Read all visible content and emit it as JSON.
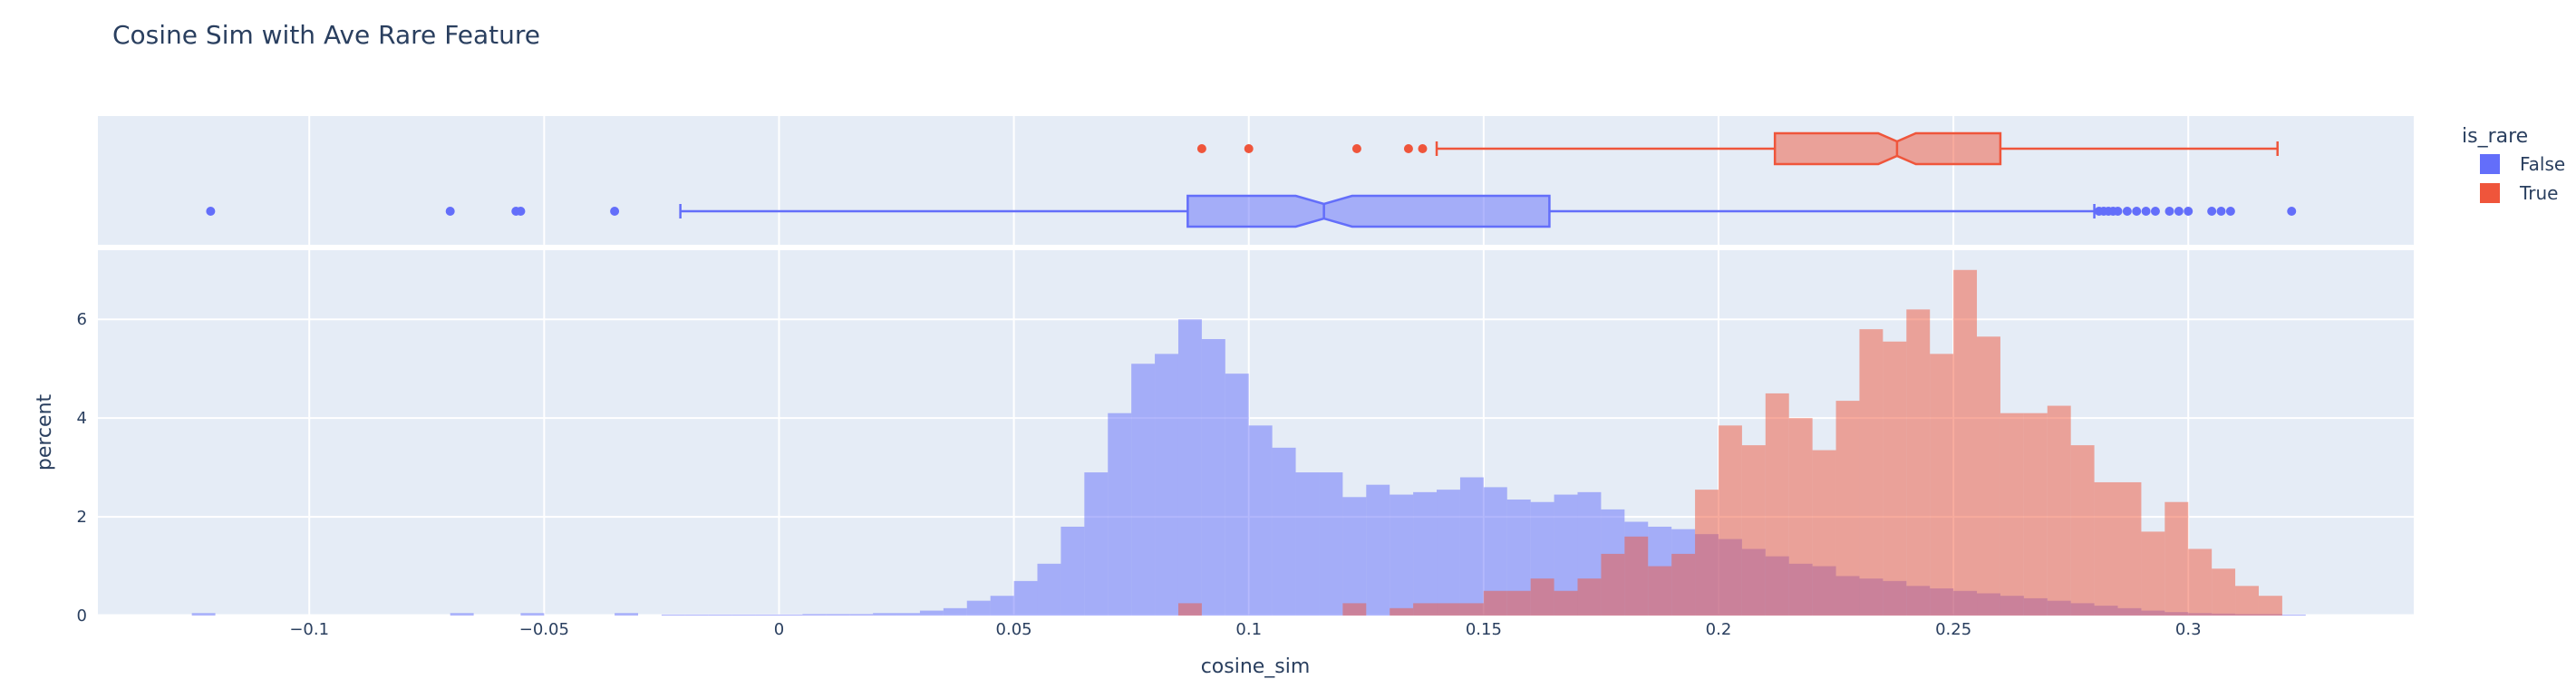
{
  "chart_data": {
    "type": "histogram-with-marginal-box",
    "title": "Cosine Sim with Ave Rare Feature",
    "xlabel": "cosine_sim",
    "ylabel": "percent",
    "xlim": [
      -0.145,
      0.348
    ],
    "ylim": [
      0,
      7.4
    ],
    "x_ticks": [
      -0.1,
      -0.05,
      0,
      0.05,
      0.1,
      0.15,
      0.2,
      0.25,
      0.3
    ],
    "x_tick_labels": [
      "−0.1",
      "−0.05",
      "0",
      "0.05",
      "0.1",
      "0.15",
      "0.2",
      "0.25",
      "0.3"
    ],
    "y_ticks": [
      0,
      2,
      4,
      6
    ],
    "y_tick_labels": [
      "0",
      "2",
      "4",
      "6"
    ],
    "bin_width": 0.005,
    "grid": true,
    "legend": {
      "title": "is_rare",
      "placement": "top-right"
    },
    "series": [
      {
        "name": "False",
        "color": "#636efa",
        "bins": [
          [
            -0.125,
            0.05
          ],
          [
            -0.07,
            0.05
          ],
          [
            -0.055,
            0.05
          ],
          [
            -0.035,
            0.05
          ],
          [
            -0.025,
            0.02
          ],
          [
            -0.02,
            0.02
          ],
          [
            -0.015,
            0.02
          ],
          [
            -0.01,
            0.02
          ],
          [
            -0.005,
            0.02
          ],
          [
            0.0,
            0.02
          ],
          [
            0.005,
            0.03
          ],
          [
            0.01,
            0.03
          ],
          [
            0.015,
            0.03
          ],
          [
            0.02,
            0.05
          ],
          [
            0.025,
            0.05
          ],
          [
            0.03,
            0.1
          ],
          [
            0.035,
            0.15
          ],
          [
            0.04,
            0.3
          ],
          [
            0.045,
            0.4
          ],
          [
            0.05,
            0.7
          ],
          [
            0.055,
            1.05
          ],
          [
            0.06,
            1.8
          ],
          [
            0.065,
            2.9
          ],
          [
            0.07,
            4.1
          ],
          [
            0.075,
            5.1
          ],
          [
            0.08,
            5.3
          ],
          [
            0.085,
            6.0
          ],
          [
            0.09,
            5.6
          ],
          [
            0.095,
            4.9
          ],
          [
            0.1,
            3.85
          ],
          [
            0.105,
            3.4
          ],
          [
            0.11,
            2.9
          ],
          [
            0.115,
            2.9
          ],
          [
            0.12,
            2.4
          ],
          [
            0.125,
            2.65
          ],
          [
            0.13,
            2.45
          ],
          [
            0.135,
            2.5
          ],
          [
            0.14,
            2.55
          ],
          [
            0.145,
            2.8
          ],
          [
            0.15,
            2.6
          ],
          [
            0.155,
            2.35
          ],
          [
            0.16,
            2.3
          ],
          [
            0.165,
            2.45
          ],
          [
            0.17,
            2.5
          ],
          [
            0.175,
            2.15
          ],
          [
            0.18,
            1.9
          ],
          [
            0.185,
            1.8
          ],
          [
            0.19,
            1.75
          ],
          [
            0.195,
            1.65
          ],
          [
            0.2,
            1.55
          ],
          [
            0.205,
            1.35
          ],
          [
            0.21,
            1.2
          ],
          [
            0.215,
            1.05
          ],
          [
            0.22,
            1.0
          ],
          [
            0.225,
            0.8
          ],
          [
            0.23,
            0.75
          ],
          [
            0.235,
            0.7
          ],
          [
            0.24,
            0.6
          ],
          [
            0.245,
            0.55
          ],
          [
            0.25,
            0.5
          ],
          [
            0.255,
            0.45
          ],
          [
            0.26,
            0.4
          ],
          [
            0.265,
            0.35
          ],
          [
            0.27,
            0.3
          ],
          [
            0.275,
            0.25
          ],
          [
            0.28,
            0.2
          ],
          [
            0.285,
            0.15
          ],
          [
            0.29,
            0.1
          ],
          [
            0.295,
            0.07
          ],
          [
            0.3,
            0.05
          ],
          [
            0.305,
            0.04
          ],
          [
            0.31,
            0.03
          ],
          [
            0.315,
            0.03
          ],
          [
            0.32,
            0.02
          ]
        ],
        "box": {
          "lower_fence": -0.021,
          "q1": 0.087,
          "median": 0.116,
          "q3": 0.164,
          "upper_fence": 0.28,
          "notch_low": 0.11,
          "notch_high": 0.122,
          "outliers": [
            -0.121,
            -0.07,
            -0.056,
            -0.055,
            -0.035,
            0.281,
            0.282,
            0.283,
            0.284,
            0.285,
            0.287,
            0.289,
            0.291,
            0.293,
            0.296,
            0.298,
            0.3,
            0.305,
            0.307,
            0.309,
            0.322
          ]
        }
      },
      {
        "name": "True",
        "color": "#ef553b",
        "bins": [
          [
            0.085,
            0.25
          ],
          [
            0.12,
            0.25
          ],
          [
            0.13,
            0.15
          ],
          [
            0.135,
            0.25
          ],
          [
            0.14,
            0.25
          ],
          [
            0.145,
            0.25
          ],
          [
            0.15,
            0.5
          ],
          [
            0.155,
            0.5
          ],
          [
            0.16,
            0.75
          ],
          [
            0.165,
            0.5
          ],
          [
            0.17,
            0.75
          ],
          [
            0.175,
            1.25
          ],
          [
            0.18,
            1.6
          ],
          [
            0.185,
            1.0
          ],
          [
            0.19,
            1.25
          ],
          [
            0.195,
            2.55
          ],
          [
            0.2,
            3.85
          ],
          [
            0.205,
            3.45
          ],
          [
            0.21,
            4.5
          ],
          [
            0.215,
            4.0
          ],
          [
            0.22,
            3.35
          ],
          [
            0.225,
            4.35
          ],
          [
            0.23,
            5.8
          ],
          [
            0.235,
            5.55
          ],
          [
            0.24,
            6.2
          ],
          [
            0.245,
            5.3
          ],
          [
            0.25,
            7.0
          ],
          [
            0.255,
            5.65
          ],
          [
            0.26,
            4.1
          ],
          [
            0.265,
            4.1
          ],
          [
            0.27,
            4.25
          ],
          [
            0.275,
            3.45
          ],
          [
            0.28,
            2.7
          ],
          [
            0.285,
            2.7
          ],
          [
            0.29,
            1.7
          ],
          [
            0.295,
            2.3
          ],
          [
            0.3,
            1.35
          ],
          [
            0.305,
            0.95
          ],
          [
            0.31,
            0.6
          ],
          [
            0.315,
            0.4
          ]
        ],
        "box": {
          "lower_fence": 0.14,
          "q1": 0.212,
          "median": 0.238,
          "q3": 0.26,
          "upper_fence": 0.319,
          "notch_low": 0.234,
          "notch_high": 0.242,
          "outliers": [
            0.09,
            0.1,
            0.123,
            0.134,
            0.137
          ]
        }
      }
    ]
  }
}
